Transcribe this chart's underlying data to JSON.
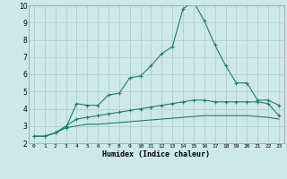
{
  "xlabel": "Humidex (Indice chaleur)",
  "background_color": "#cce8e8",
  "grid_color": "#aacccc",
  "line_color": "#2a7a6a",
  "x": [
    0,
    1,
    2,
    3,
    4,
    5,
    6,
    7,
    8,
    9,
    10,
    11,
    12,
    13,
    14,
    15,
    16,
    17,
    18,
    19,
    20,
    21,
    22,
    23
  ],
  "line1": [
    2.4,
    2.4,
    2.6,
    2.9,
    4.3,
    4.2,
    4.2,
    4.8,
    4.9,
    5.8,
    5.9,
    6.5,
    7.2,
    7.6,
    9.8,
    10.2,
    9.1,
    7.7,
    6.5,
    5.5,
    5.5,
    4.5,
    4.5,
    4.2
  ],
  "line2": [
    2.4,
    2.4,
    2.6,
    3.0,
    3.4,
    3.5,
    3.6,
    3.7,
    3.8,
    3.9,
    4.0,
    4.1,
    4.2,
    4.3,
    4.4,
    4.5,
    4.5,
    4.4,
    4.4,
    4.4,
    4.4,
    4.4,
    4.3,
    3.6
  ],
  "line3": [
    2.4,
    2.4,
    2.6,
    2.9,
    3.0,
    3.1,
    3.1,
    3.15,
    3.2,
    3.25,
    3.3,
    3.35,
    3.4,
    3.45,
    3.5,
    3.55,
    3.6,
    3.6,
    3.6,
    3.6,
    3.6,
    3.55,
    3.5,
    3.4
  ],
  "ylim": [
    2,
    10
  ],
  "xlim": [
    -0.5,
    23.5
  ],
  "yticks": [
    2,
    3,
    4,
    5,
    6,
    7,
    8,
    9,
    10
  ],
  "xticks": [
    0,
    1,
    2,
    3,
    4,
    5,
    6,
    7,
    8,
    9,
    10,
    11,
    12,
    13,
    14,
    15,
    16,
    17,
    18,
    19,
    20,
    21,
    22,
    23
  ]
}
